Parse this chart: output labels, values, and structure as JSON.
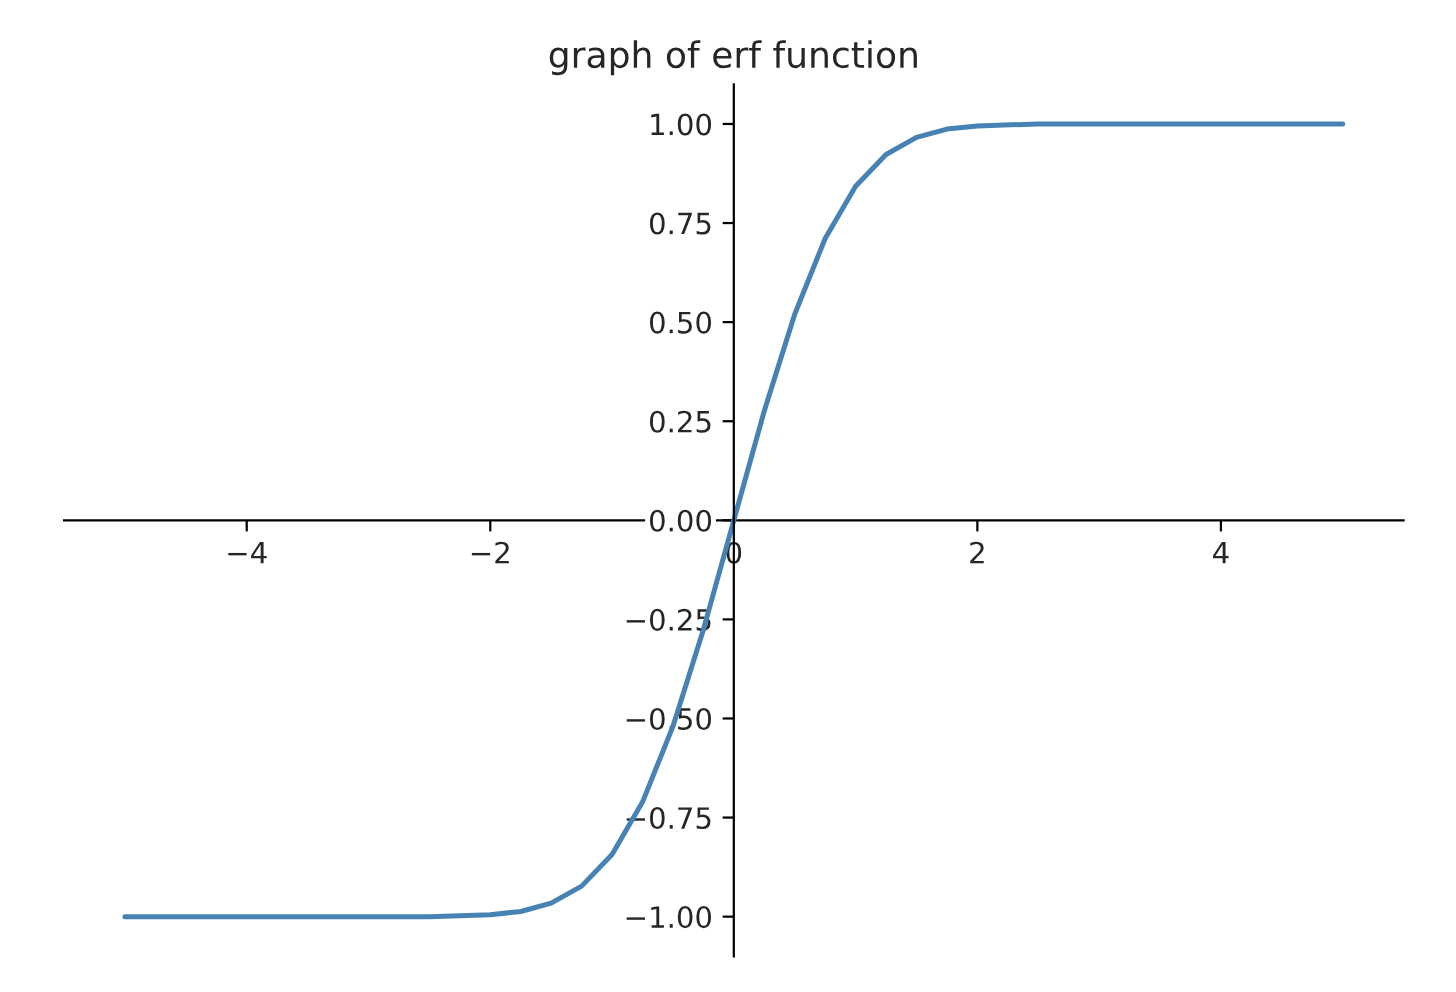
{
  "chart_data": {
    "type": "line",
    "title": "graph of erf function",
    "x": [
      -5,
      -3,
      -2.5,
      -2,
      -1.75,
      -1.5,
      -1.25,
      -1,
      -0.75,
      -0.5,
      -0.25,
      0,
      0.25,
      0.5,
      0.75,
      1,
      1.25,
      1.5,
      1.75,
      2,
      2.5,
      3,
      5
    ],
    "series": [
      {
        "color": "#4682b4",
        "values": [
          -1.0,
          -1.0,
          -1.0,
          -0.995,
          -0.987,
          -0.966,
          -0.923,
          -0.843,
          -0.711,
          -0.52,
          -0.276,
          0,
          0.276,
          0.52,
          0.711,
          0.843,
          0.923,
          0.966,
          0.987,
          0.995,
          1.0,
          1.0,
          1.0
        ]
      }
    ],
    "xlim": [
      -5.5,
      5.5
    ],
    "ylim": [
      -1.1,
      1.1
    ],
    "xticks": [
      {
        "value": -4,
        "label": "−4"
      },
      {
        "value": -2,
        "label": "−2"
      },
      0,
      2,
      4
    ],
    "yticks": [
      {
        "value": -1,
        "label": "−1.00"
      },
      {
        "value": -0.75,
        "label": "−0.75"
      },
      {
        "value": -0.5,
        "label": "−0.50"
      },
      {
        "value": -0.25,
        "label": "−0.25"
      },
      {
        "value": 0,
        "label": "0.00"
      },
      {
        "value": 0.25,
        "label": "0.25"
      },
      {
        "value": 0.5,
        "label": "0.50"
      },
      {
        "value": 0.75,
        "label": "0.75"
      },
      {
        "value": 1,
        "label": "1.00"
      }
    ],
    "grid": false,
    "legend": false
  }
}
